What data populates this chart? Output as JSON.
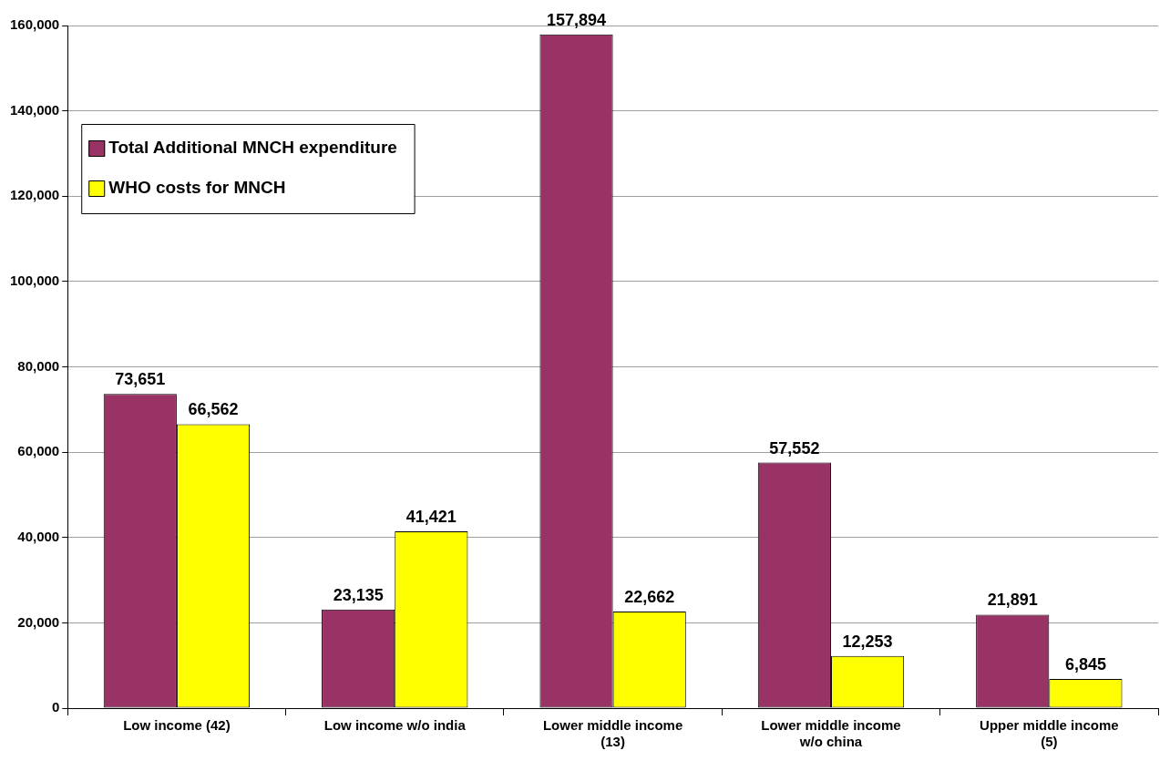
{
  "chart_data": {
    "type": "bar",
    "categories": [
      "Low income (42)",
      "Low income w/o india",
      "Lower middle income (13)",
      "Lower middle income w/o china",
      "Upper middle income (5)"
    ],
    "series": [
      {
        "name": "Total Additional MNCH expenditure",
        "color": "#993366",
        "values": [
          73651,
          23135,
          157894,
          57552,
          21891
        ],
        "value_labels": [
          "73,651",
          "23,135",
          "157,894",
          "57,552",
          "21,891"
        ]
      },
      {
        "name": "WHO costs for MNCH",
        "color": "#ffff00",
        "values": [
          66562,
          41421,
          22662,
          12253,
          6845
        ],
        "value_labels": [
          "66,562",
          "41,421",
          "22,662",
          "12,253",
          "6,845"
        ]
      }
    ],
    "ylim": [
      0,
      160000
    ],
    "yticks": [
      {
        "value": 0,
        "label": "0"
      },
      {
        "value": 20000,
        "label": "20,000"
      },
      {
        "value": 40000,
        "label": "40,000"
      },
      {
        "value": 60000,
        "label": "60,000"
      },
      {
        "value": 80000,
        "label": "80,000"
      },
      {
        "value": 100000,
        "label": "100,000"
      },
      {
        "value": 120000,
        "label": "120,000"
      },
      {
        "value": 140000,
        "label": "140,000"
      },
      {
        "value": 160000,
        "label": "160,000"
      }
    ],
    "grid": "y",
    "legend": "top left"
  }
}
